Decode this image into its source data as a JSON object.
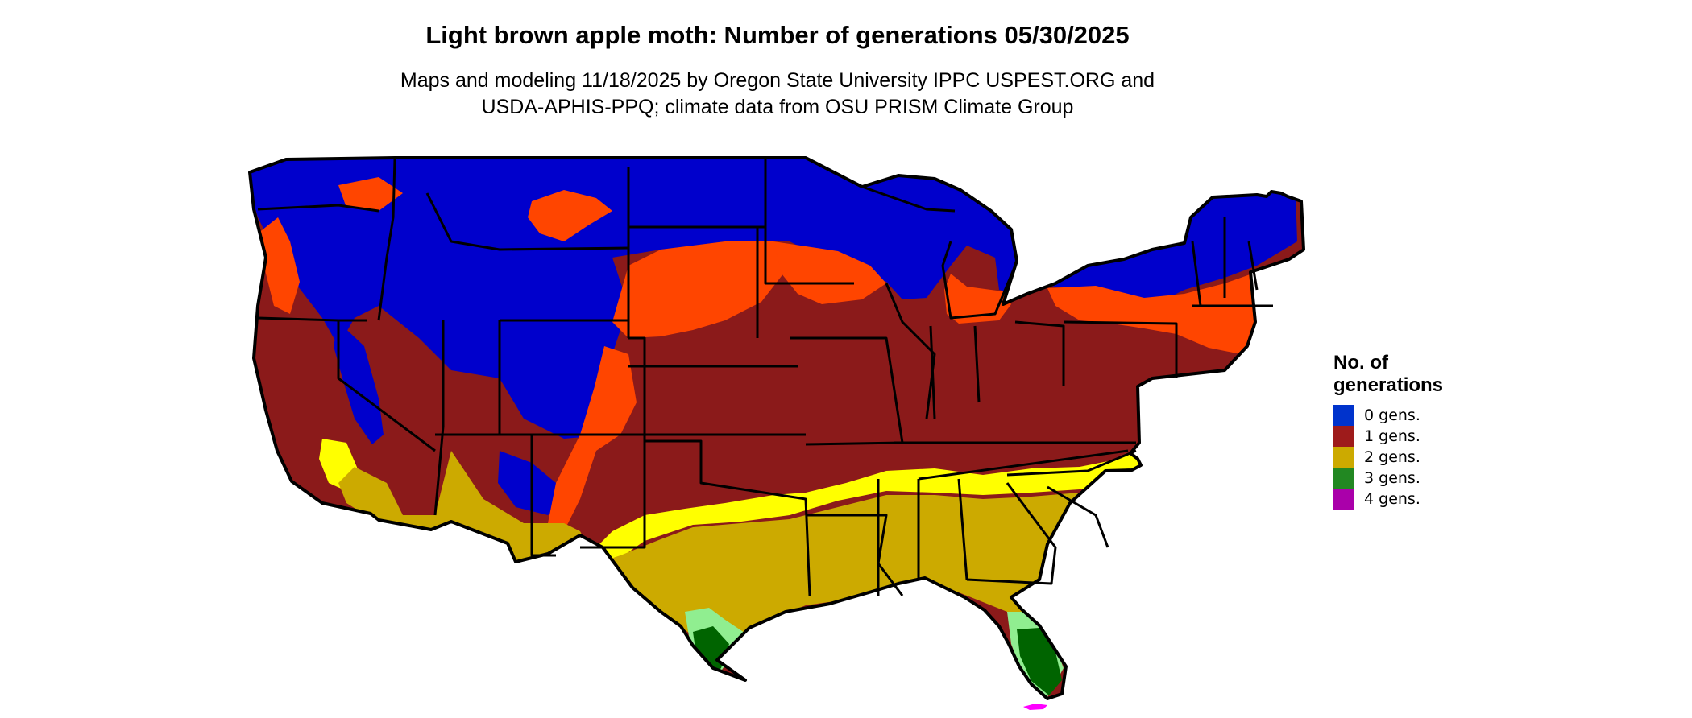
{
  "title": "Light brown apple moth: Number of generations 05/30/2025",
  "subtitle_lines": [
    "Maps and modeling 11/18/2025 by Oregon State University IPPC USPEST.ORG and",
    "USDA-APHIS-PPQ; climate data from OSU PRISM Climate Group"
  ],
  "legend": {
    "title_lines": [
      "No. of",
      "generations"
    ],
    "items": [
      {
        "label": "0 gens.",
        "color": "#0033cc"
      },
      {
        "label": "1 gens.",
        "color": "#9e1b1b"
      },
      {
        "label": "2 gens.",
        "color": "#ccaa00"
      },
      {
        "label": "3 gens.",
        "color": "#228822"
      },
      {
        "label": "4 gens.",
        "color": "#aa00aa"
      }
    ]
  },
  "map_colors": {
    "gen0": "#0000cc",
    "gen1": "#8b1a1a",
    "gen1_fringe": "#ff4500",
    "gen2": "#ccaa00",
    "gen2_fringe": "#ffff00",
    "gen3": "#006400",
    "gen3_fringe": "#90ee90",
    "gen4": "#ff00ff",
    "border": "#000000"
  }
}
